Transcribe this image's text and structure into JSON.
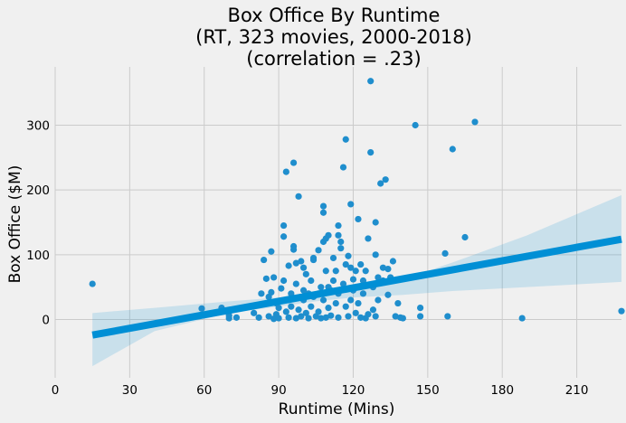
{
  "chart_data": {
    "type": "scatter",
    "title_lines": [
      "Box Office By Runtime",
      "(RT, 323 movies, 2000-2018)",
      "(correlation = .23)"
    ],
    "xlabel": "Runtime (Mins)",
    "ylabel": "Box Office ($M)",
    "xlim": [
      0,
      228
    ],
    "ylim": [
      -90,
      390
    ],
    "xticks": [
      0,
      30,
      60,
      90,
      120,
      150,
      180,
      210
    ],
    "yticks": [
      0,
      100,
      200,
      300
    ],
    "grid": true,
    "colors": {
      "points": "#1f8ecd",
      "line": "#008fd5",
      "band": "#008fd5",
      "background": "#f0f0f0",
      "grid": "#cbcbcb"
    },
    "regression": {
      "x_range": [
        15,
        228
      ],
      "y_at_start": -24,
      "y_at_end": 124,
      "ci_lower": [
        [
          15,
          -72
        ],
        [
          40,
          -18
        ],
        [
          70,
          10
        ],
        [
          90,
          20
        ],
        [
          105,
          28
        ],
        [
          120,
          34
        ],
        [
          140,
          38
        ],
        [
          160,
          44
        ],
        [
          190,
          50
        ],
        [
          228,
          58
        ]
      ],
      "ci_upper": [
        [
          15,
          10
        ],
        [
          40,
          18
        ],
        [
          70,
          28
        ],
        [
          90,
          34
        ],
        [
          105,
          40
        ],
        [
          120,
          47
        ],
        [
          140,
          62
        ],
        [
          160,
          88
        ],
        [
          190,
          130
        ],
        [
          228,
          192
        ]
      ]
    },
    "points": [
      [
        15,
        55
      ],
      [
        59,
        17
      ],
      [
        67,
        18
      ],
      [
        70,
        2
      ],
      [
        70,
        6
      ],
      [
        73,
        3
      ],
      [
        80,
        10
      ],
      [
        82,
        3
      ],
      [
        83,
        40
      ],
      [
        84,
        92
      ],
      [
        85,
        63
      ],
      [
        86,
        5
      ],
      [
        86,
        35
      ],
      [
        87,
        105
      ],
      [
        87,
        42
      ],
      [
        88,
        65
      ],
      [
        88,
        1
      ],
      [
        89,
        25
      ],
      [
        89,
        8
      ],
      [
        90,
        18
      ],
      [
        90,
        2
      ],
      [
        91,
        48
      ],
      [
        92,
        128
      ],
      [
        92,
        145
      ],
      [
        92,
        60
      ],
      [
        93,
        228
      ],
      [
        93,
        12
      ],
      [
        94,
        83
      ],
      [
        94,
        30
      ],
      [
        94,
        3
      ],
      [
        95,
        40
      ],
      [
        95,
        20
      ],
      [
        96,
        242
      ],
      [
        96,
        108
      ],
      [
        96,
        113
      ],
      [
        97,
        87
      ],
      [
        97,
        55
      ],
      [
        97,
        2
      ],
      [
        98,
        190
      ],
      [
        98,
        15
      ],
      [
        99,
        90
      ],
      [
        99,
        5
      ],
      [
        100,
        80
      ],
      [
        100,
        45
      ],
      [
        100,
        30
      ],
      [
        101,
        70
      ],
      [
        101,
        10
      ],
      [
        102,
        40
      ],
      [
        102,
        2
      ],
      [
        103,
        60
      ],
      [
        103,
        20
      ],
      [
        104,
        95
      ],
      [
        104,
        92
      ],
      [
        104,
        35
      ],
      [
        105,
        5
      ],
      [
        106,
        107
      ],
      [
        106,
        40
      ],
      [
        106,
        12
      ],
      [
        107,
        50
      ],
      [
        107,
        2
      ],
      [
        108,
        120
      ],
      [
        108,
        175
      ],
      [
        108,
        165
      ],
      [
        108,
        30
      ],
      [
        109,
        75
      ],
      [
        109,
        125
      ],
      [
        109,
        3
      ],
      [
        110,
        130
      ],
      [
        110,
        50
      ],
      [
        110,
        18
      ],
      [
        111,
        45
      ],
      [
        111,
        6
      ],
      [
        112,
        95
      ],
      [
        112,
        60
      ],
      [
        113,
        75
      ],
      [
        113,
        25
      ],
      [
        114,
        145
      ],
      [
        114,
        130
      ],
      [
        114,
        40
      ],
      [
        114,
        3
      ],
      [
        115,
        120
      ],
      [
        115,
        110
      ],
      [
        116,
        235
      ],
      [
        116,
        55
      ],
      [
        117,
        278
      ],
      [
        117,
        20
      ],
      [
        117,
        85
      ],
      [
        118,
        98
      ],
      [
        118,
        5
      ],
      [
        119,
        178
      ],
      [
        119,
        80
      ],
      [
        119,
        30
      ],
      [
        120,
        45
      ],
      [
        120,
        62
      ],
      [
        121,
        75
      ],
      [
        121,
        10
      ],
      [
        122,
        155
      ],
      [
        122,
        25
      ],
      [
        123,
        85
      ],
      [
        123,
        3
      ],
      [
        124,
        60
      ],
      [
        124,
        40
      ],
      [
        125,
        75
      ],
      [
        125,
        2
      ],
      [
        126,
        125
      ],
      [
        126,
        8
      ],
      [
        127,
        258
      ],
      [
        127,
        368
      ],
      [
        128,
        50
      ],
      [
        128,
        15
      ],
      [
        129,
        150
      ],
      [
        129,
        100
      ],
      [
        129,
        5
      ],
      [
        130,
        65
      ],
      [
        130,
        30
      ],
      [
        131,
        210
      ],
      [
        132,
        80
      ],
      [
        132,
        60
      ],
      [
        133,
        216
      ],
      [
        134,
        78
      ],
      [
        134,
        38
      ],
      [
        135,
        65
      ],
      [
        136,
        90
      ],
      [
        137,
        5
      ],
      [
        138,
        25
      ],
      [
        139,
        3
      ],
      [
        140,
        2
      ],
      [
        145,
        300
      ],
      [
        147,
        18
      ],
      [
        147,
        5
      ],
      [
        157,
        102
      ],
      [
        158,
        5
      ],
      [
        160,
        263
      ],
      [
        165,
        127
      ],
      [
        169,
        305
      ],
      [
        188,
        2
      ],
      [
        228,
        13
      ]
    ]
  }
}
